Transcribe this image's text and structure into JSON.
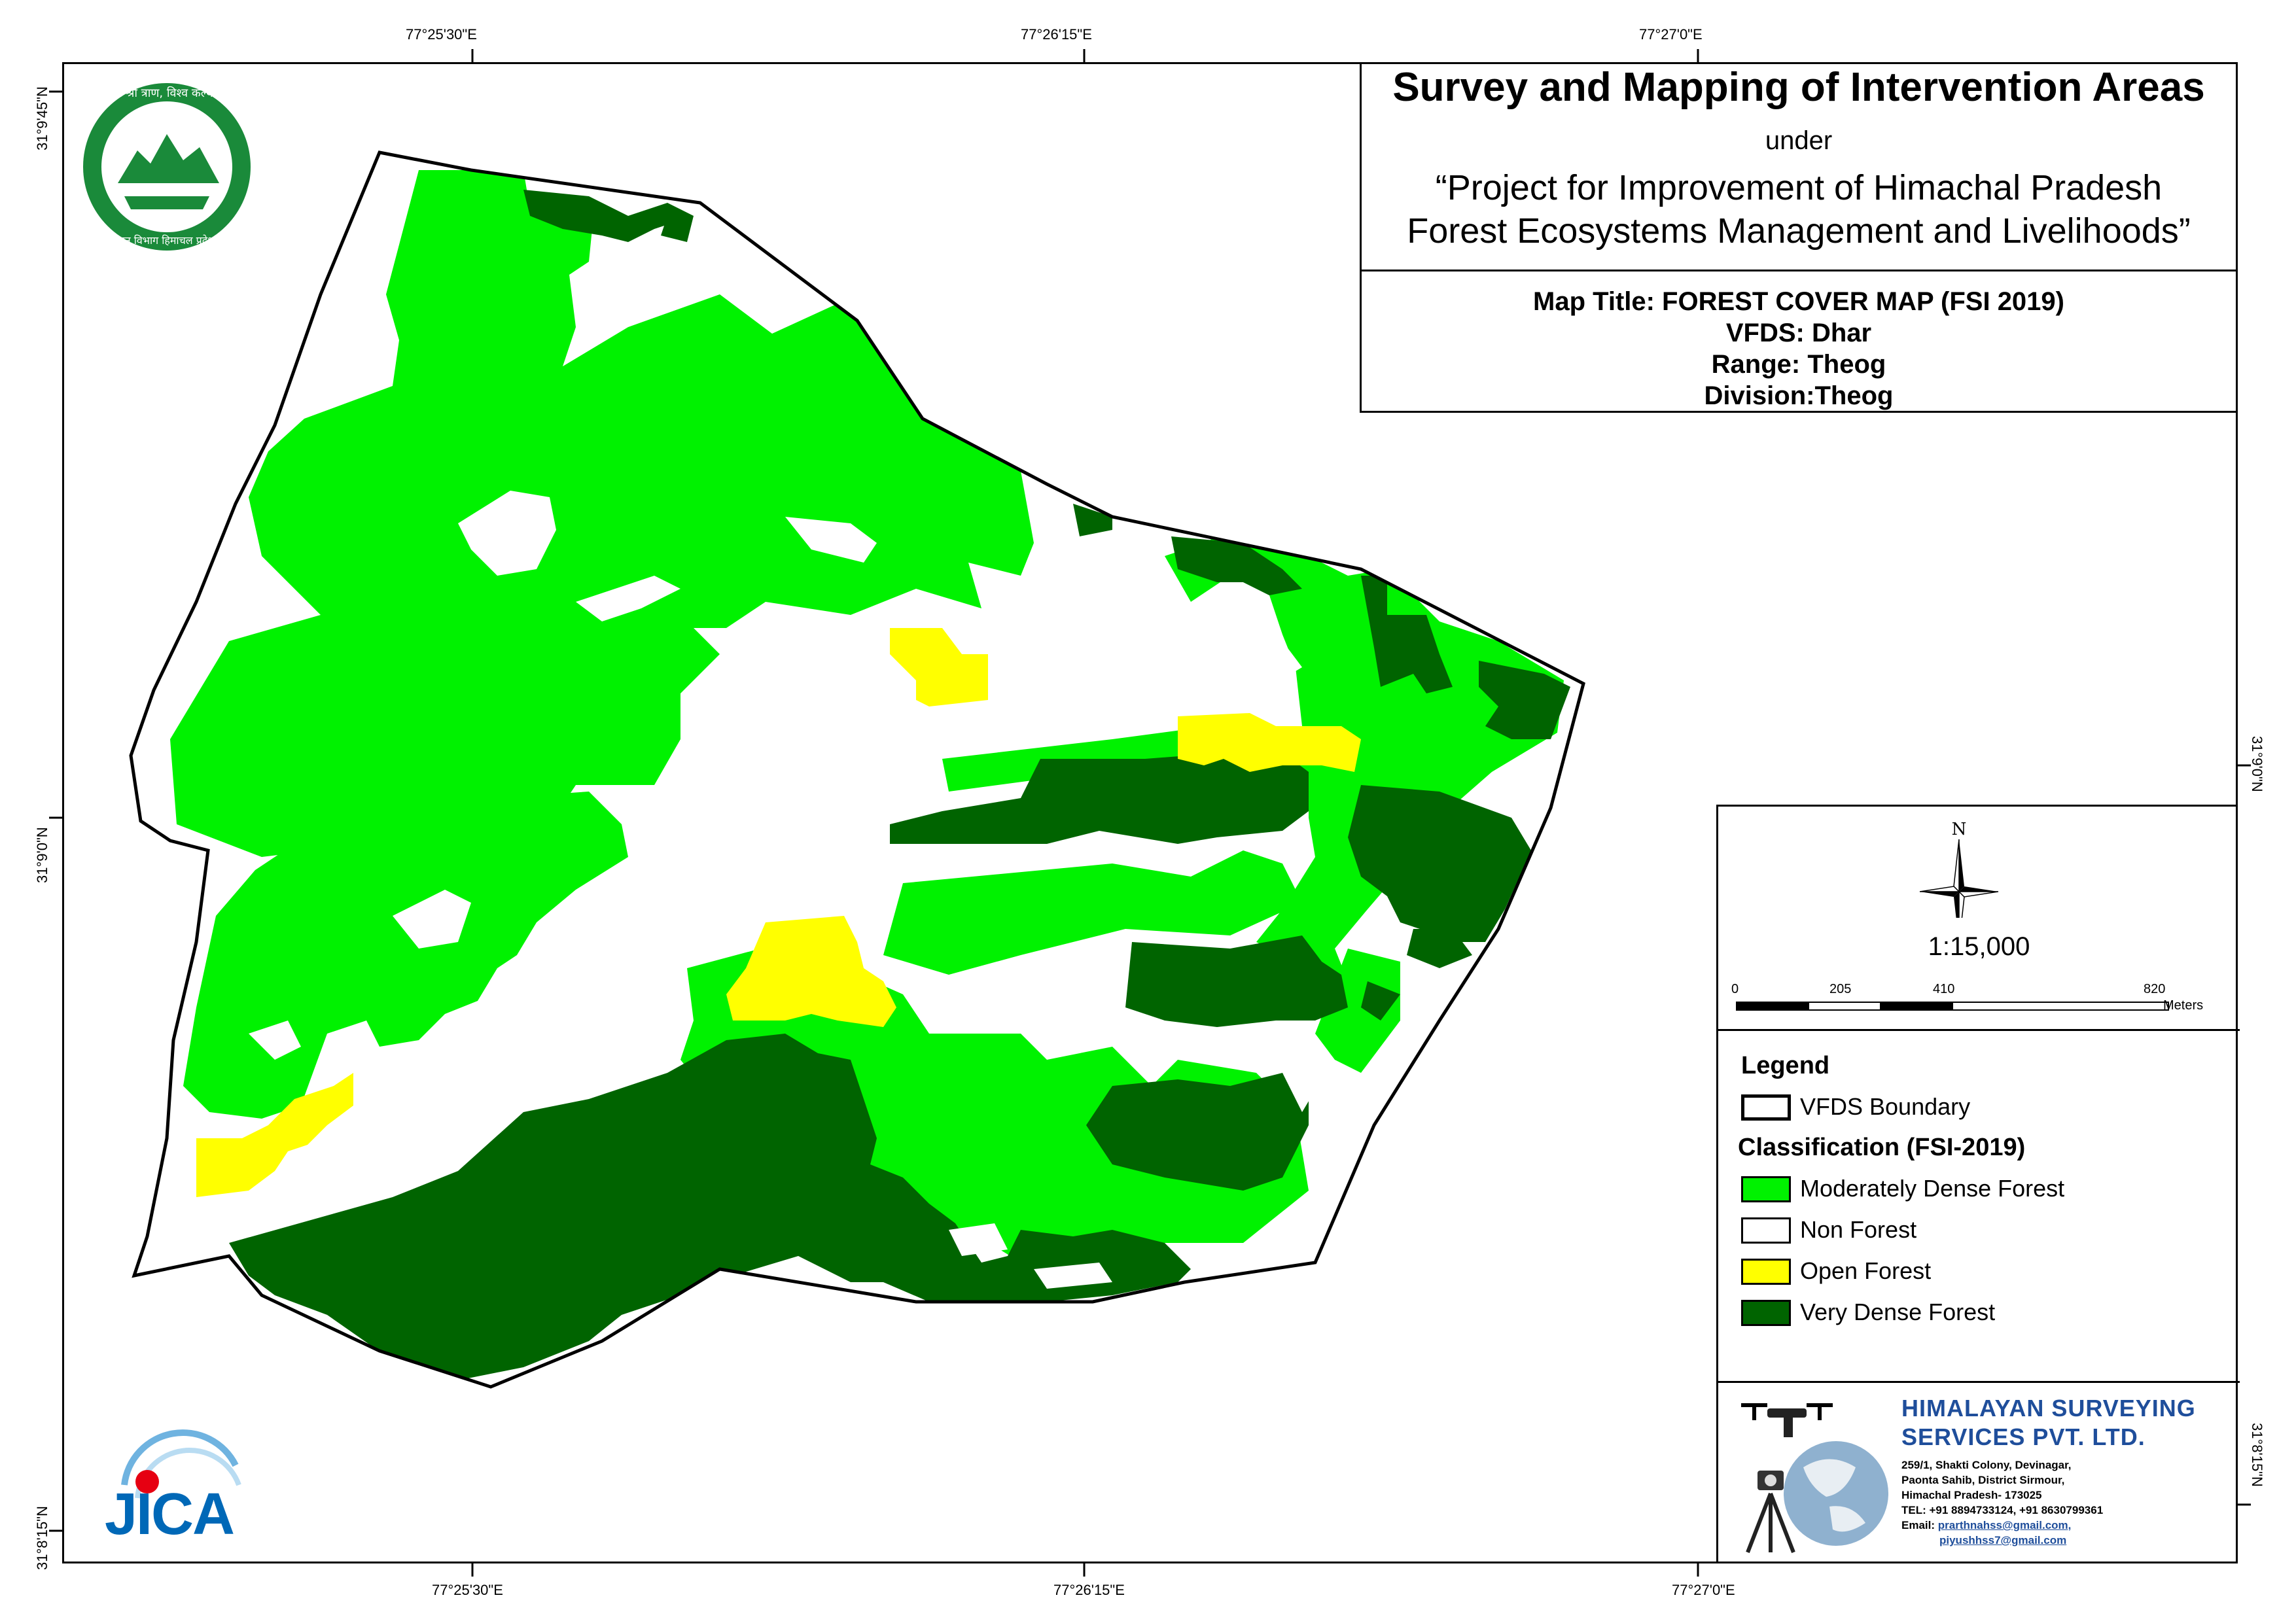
{
  "map": {
    "grid_labels": {
      "top": [
        "77°25'30\"E",
        "77°26'15\"E",
        "77°27'0\"E"
      ],
      "bottom": [
        "77°25'30\"E",
        "77°26'15\"E",
        "77°27'0\"E"
      ],
      "left": [
        "31°9'45\"N",
        "31°9'0\"N",
        "31°8'15\"N"
      ],
      "right": [
        "31°9'0\"N",
        "31°8'15\"N"
      ]
    },
    "classes": [
      {
        "name": "Moderately Dense Forest",
        "color": "#00f200"
      },
      {
        "name": "Non Forest",
        "color": "#ffffff"
      },
      {
        "name": "Open Forest",
        "color": "#ffff00"
      },
      {
        "name": "Very Dense Forest",
        "color": "#006400"
      }
    ]
  },
  "header": {
    "title": "Survey and Mapping of Intervention Areas",
    "under": "under",
    "project_line1": "“Project for Improvement of Himachal Pradesh",
    "project_line2": "Forest Ecosystems Management and Livelihoods”"
  },
  "meta": {
    "map_title": "Map Title: FOREST COVER MAP (FSI 2019)",
    "vfds": "VFDS: Dhar",
    "range": "Range: Theog",
    "division": "Division:Theog"
  },
  "north": "N",
  "scale": {
    "ratio": "1:15,000",
    "ticks": [
      "0",
      "205",
      "410",
      "820"
    ],
    "unit": "Meters"
  },
  "legend": {
    "heading": "Legend",
    "boundary": "VFDS Boundary",
    "classification_heading": "Classification (FSI-2019)",
    "items": [
      "Moderately Dense Forest",
      "Non Forest",
      "Open Forest",
      "Very Dense Forest"
    ]
  },
  "company": {
    "name_line1": "HIMALAYAN SURVEYING",
    "name_line2": "SERVICES PVT. LTD.",
    "address": [
      "259/1, Shakti Colony, Devinagar,",
      "Paonta Sahib, District Sirmour,",
      "Himachal Pradesh- 173025",
      "TEL: +91 8894733124, +91 8630799361"
    ],
    "email_label": "Email:",
    "email1": "prarthnahss@gmail.com,",
    "email2": "piyushhss7@gmail.com"
  },
  "logos": {
    "forest_dept_text_top": "वन श्री त्राण, विश्व कल्याण",
    "forest_dept_text_bottom": "वन विभाग हिमाचल प्रदेश",
    "jica": "JICA"
  }
}
